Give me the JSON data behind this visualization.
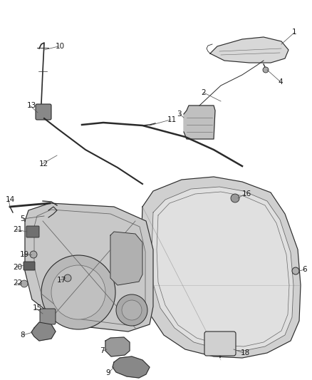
{
  "bg_color": "#ffffff",
  "fig_width": 4.38,
  "fig_height": 5.33,
  "dpi": 100,
  "line_color": "#2a2a2a",
  "text_color": "#1a1a1a",
  "font_size": 7.5,
  "leader_color": "#555555",
  "part_color": "#404040",
  "gray1": "#cccccc",
  "gray2": "#aaaaaa",
  "gray3": "#888888",
  "gray4": "#666666",
  "gray5": "#444444"
}
